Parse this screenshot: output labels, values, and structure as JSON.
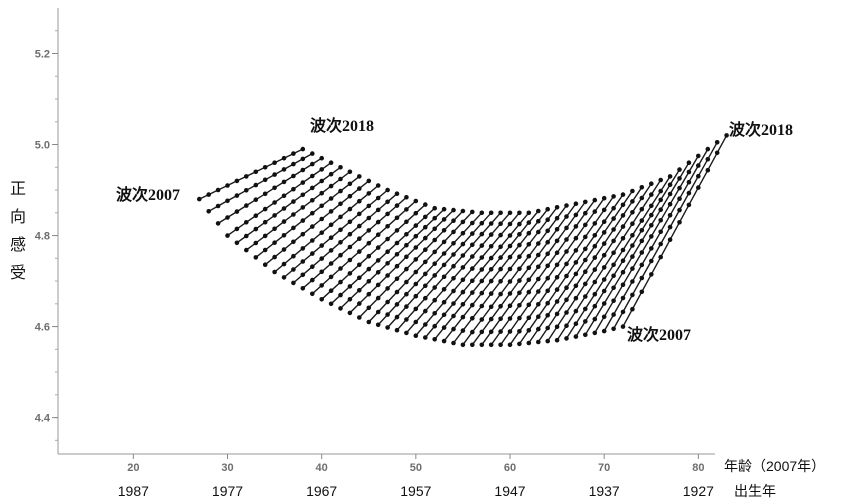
{
  "chart_data": {
    "type": "line",
    "description_source": "wave-by-wave age trajectories of positive affect",
    "ylabel": "正向感受",
    "xlabel_age": "年龄（2007年）",
    "xlabel_birth": "出生年",
    "xlim": [
      12,
      84
    ],
    "ylim": [
      4.32,
      5.3
    ],
    "x_ticks": [
      20,
      30,
      40,
      50,
      60,
      70,
      80
    ],
    "birth_year_ticks": [
      "1987",
      "1977",
      "1967",
      "1957",
      "1947",
      "1937",
      "1927"
    ],
    "y_ticks": [
      "4.4",
      "4.6",
      "4.8",
      "5.0",
      "5.2"
    ],
    "y_tick_values": [
      4.4,
      4.6,
      4.8,
      5.0,
      5.2
    ],
    "annotations": {
      "left_wave_2018": "波次2018",
      "left_wave_2007": "波次2007",
      "right_wave_2018": "波次2018",
      "right_wave_2007": "波次2007"
    },
    "wave_2007_curve": [
      [
        27,
        4.88
      ],
      [
        30,
        4.8
      ],
      [
        35,
        4.72
      ],
      [
        40,
        4.66
      ],
      [
        45,
        4.61
      ],
      [
        50,
        4.58
      ],
      [
        55,
        4.56
      ],
      [
        60,
        4.56
      ],
      [
        65,
        4.57
      ],
      [
        70,
        4.59
      ],
      [
        72,
        4.6
      ]
    ],
    "wave_2018_curve": [
      [
        38,
        4.99
      ],
      [
        42,
        4.95
      ],
      [
        47,
        4.9
      ],
      [
        52,
        4.86
      ],
      [
        57,
        4.85
      ],
      [
        62,
        4.85
      ],
      [
        67,
        4.87
      ],
      [
        72,
        4.89
      ],
      [
        77,
        4.93
      ],
      [
        83,
        5.02
      ]
    ],
    "cohort_age_2007_start": 27,
    "cohort_age_2007_end": 72,
    "waves_per_cohort": 12
  }
}
